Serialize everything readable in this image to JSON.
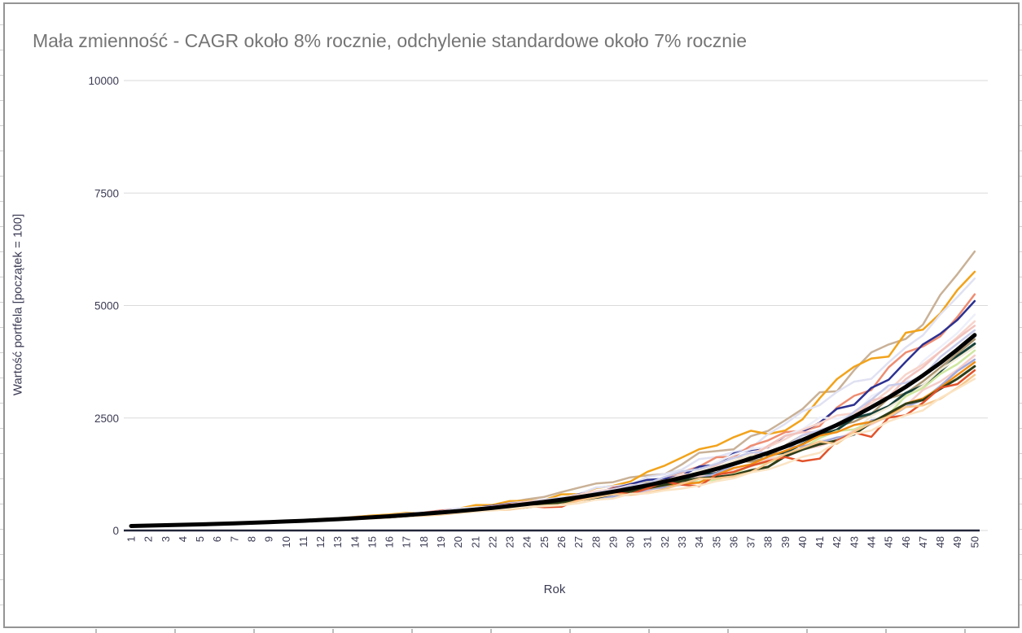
{
  "widget": {
    "border_color": "#949494",
    "background": "#ffffff"
  },
  "chart_data": {
    "type": "line",
    "title": "Mała zmienność - CAGR około 8% rocznie, odchylenie standardowe około 7% rocznie",
    "title_color": "#757575",
    "xlabel": "Rok",
    "ylabel": "Wartość portfela [początek = 100]",
    "axis_text_color": "#3b3b54",
    "grid_color": "#dadada",
    "axis_line_color": "#222639",
    "grid": "horizontal-only",
    "legend": "none",
    "ylim": [
      0,
      10000
    ],
    "yticks": [
      0,
      2500,
      5000,
      7500,
      10000
    ],
    "x": [
      1,
      2,
      3,
      4,
      5,
      6,
      7,
      8,
      9,
      10,
      11,
      12,
      13,
      14,
      15,
      16,
      17,
      18,
      19,
      20,
      21,
      22,
      23,
      24,
      25,
      26,
      27,
      28,
      29,
      30,
      31,
      32,
      33,
      34,
      35,
      36,
      37,
      38,
      39,
      40,
      41,
      42,
      43,
      44,
      45,
      46,
      47,
      48,
      49,
      50
    ],
    "average_series": {
      "name": "average-line",
      "color": "#000000",
      "stroke_width": 5,
      "start_value": 100,
      "end_value": 4343,
      "cagr_pct": 8,
      "values": [
        100,
        108,
        117,
        126,
        136,
        147,
        159,
        171,
        185,
        200,
        216,
        233,
        252,
        272,
        294,
        317,
        343,
        370,
        400,
        432,
        466,
        503,
        544,
        587,
        634,
        685,
        740,
        799,
        863,
        932,
        1006,
        1087,
        1174,
        1268,
        1369,
        1479,
        1597,
        1725,
        1863,
        2012,
        2173,
        2346,
        2534,
        2737,
        2956,
        3192,
        3447,
        3723,
        4021,
        4343
      ],
      "note": "thick black mean path, ~8% CAGR from 100 to ~4340 over 50 years"
    },
    "series": [
      {
        "name": "simulation-01",
        "color": "#c9b197",
        "stroke_width": 2.5,
        "start_value": 100,
        "end_value": 6200,
        "jitter": 0.09,
        "seed": 11
      },
      {
        "name": "simulation-02",
        "color": "#f2a31b",
        "stroke_width": 2.5,
        "start_value": 100,
        "end_value": 5750,
        "jitter": 0.13,
        "seed": 23
      },
      {
        "name": "simulation-03",
        "color": "#e0e1f2",
        "stroke_width": 2.5,
        "start_value": 100,
        "end_value": 5600,
        "jitter": 0.08,
        "seed": 5
      },
      {
        "name": "simulation-04",
        "color": "#ee8d72",
        "stroke_width": 2.5,
        "start_value": 100,
        "end_value": 5250,
        "jitter": 0.11,
        "seed": 41
      },
      {
        "name": "simulation-05",
        "color": "#2b3191",
        "stroke_width": 2.5,
        "start_value": 100,
        "end_value": 5100,
        "jitter": 0.07,
        "seed": 17
      },
      {
        "name": "simulation-06",
        "color": "#edeff9",
        "stroke_width": 2.5,
        "start_value": 100,
        "end_value": 4800,
        "jitter": 0.09,
        "seed": 29
      },
      {
        "name": "simulation-07",
        "color": "#f7d4cb",
        "stroke_width": 2.5,
        "start_value": 100,
        "end_value": 4650,
        "jitter": 0.07,
        "seed": 3
      },
      {
        "name": "simulation-08",
        "color": "#f2c3bd",
        "stroke_width": 2.5,
        "start_value": 100,
        "end_value": 4550,
        "jitter": 0.08,
        "seed": 53
      },
      {
        "name": "simulation-09",
        "color": "#ab9571",
        "stroke_width": 2.5,
        "start_value": 100,
        "end_value": 4250,
        "jitter": 0.07,
        "seed": 19
      },
      {
        "name": "simulation-10",
        "color": "#16413a",
        "stroke_width": 3,
        "start_value": 100,
        "end_value": 4150,
        "jitter": 0.06,
        "seed": 37
      },
      {
        "name": "simulation-11",
        "color": "#f2ead6",
        "stroke_width": 2.5,
        "start_value": 100,
        "end_value": 4080,
        "jitter": 0.08,
        "seed": 7
      },
      {
        "name": "simulation-12",
        "color": "#cfe79f",
        "stroke_width": 2.5,
        "start_value": 100,
        "end_value": 4000,
        "jitter": 0.09,
        "seed": 47
      },
      {
        "name": "simulation-13",
        "color": "#f5cdc9",
        "stroke_width": 2.5,
        "start_value": 100,
        "end_value": 3890,
        "jitter": 0.06,
        "seed": 13
      },
      {
        "name": "simulation-14",
        "color": "#a3aad9",
        "stroke_width": 2.5,
        "start_value": 100,
        "end_value": 3800,
        "jitter": 0.08,
        "seed": 31
      },
      {
        "name": "simulation-15",
        "color": "#ef8d13",
        "stroke_width": 2.5,
        "start_value": 100,
        "end_value": 3740,
        "jitter": 0.07,
        "seed": 43
      },
      {
        "name": "simulation-16",
        "color": "#2e3d18",
        "stroke_width": 3,
        "start_value": 100,
        "end_value": 3650,
        "jitter": 0.06,
        "seed": 59
      },
      {
        "name": "simulation-17",
        "color": "#e2532b",
        "stroke_width": 2.5,
        "start_value": 100,
        "end_value": 3560,
        "jitter": 0.17,
        "seed": 61
      },
      {
        "name": "simulation-18",
        "color": "#f7c78c",
        "stroke_width": 2.5,
        "start_value": 100,
        "end_value": 3460,
        "jitter": 0.08,
        "seed": 67
      },
      {
        "name": "simulation-19",
        "color": "#fbe4c4",
        "stroke_width": 2.5,
        "start_value": 100,
        "end_value": 3370,
        "jitter": 0.07,
        "seed": 71
      },
      {
        "name": "simulation-20",
        "color": "#c8cbe9",
        "stroke_width": 2.5,
        "start_value": 100,
        "end_value": 4450,
        "jitter": 0.08,
        "seed": 73
      }
    ]
  }
}
